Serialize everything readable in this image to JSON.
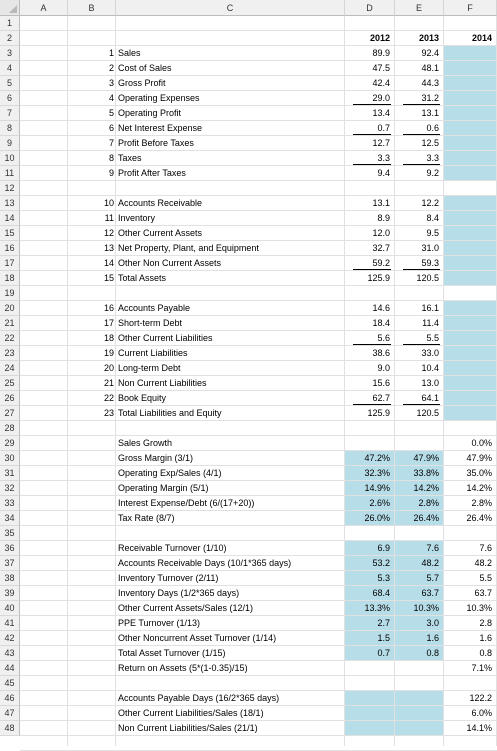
{
  "columns": [
    "A",
    "B",
    "C",
    "D",
    "E",
    "F"
  ],
  "header_row": {
    "d": "2012",
    "e": "2013",
    "f": "2014"
  },
  "rows": [
    {
      "r": "3",
      "n": "1",
      "label": "Sales",
      "d": "89.9",
      "e": "92.4"
    },
    {
      "r": "4",
      "n": "2",
      "label": "Cost of Sales",
      "d": "47.5",
      "e": "48.1"
    },
    {
      "r": "5",
      "n": "3",
      "label": "Gross Profit",
      "d": "42.4",
      "e": "44.3"
    },
    {
      "r": "6",
      "n": "4",
      "label": "Operating Expenses",
      "d": "29.0",
      "e": "31.2"
    },
    {
      "r": "7",
      "n": "5",
      "label": "Operating Profit",
      "d": "13.4",
      "e": "13.1"
    },
    {
      "r": "8",
      "n": "6",
      "label": "Net Interest Expense",
      "d": "0.7",
      "e": "0.6"
    },
    {
      "r": "9",
      "n": "7",
      "label": "Profit Before Taxes",
      "d": "12.7",
      "e": "12.5"
    },
    {
      "r": "10",
      "n": "8",
      "label": "Taxes",
      "d": "3.3",
      "e": "3.3"
    },
    {
      "r": "11",
      "n": "9",
      "label": "Profit After Taxes",
      "d": "9.4",
      "e": "9.2"
    },
    {
      "r": "13",
      "n": "10",
      "label": "Accounts Receivable",
      "d": "13.1",
      "e": "12.2"
    },
    {
      "r": "14",
      "n": "11",
      "label": "Inventory",
      "d": "8.9",
      "e": "8.4"
    },
    {
      "r": "15",
      "n": "12",
      "label": "Other Current Assets",
      "d": "12.0",
      "e": "9.5"
    },
    {
      "r": "16",
      "n": "13",
      "label": "Net Property, Plant, and Equipment",
      "d": "32.7",
      "e": "31.0"
    },
    {
      "r": "17",
      "n": "14",
      "label": "Other Non Current Assets",
      "d": "59.2",
      "e": "59.3"
    },
    {
      "r": "18",
      "n": "15",
      "label": "Total Assets",
      "d": "125.9",
      "e": "120.5"
    },
    {
      "r": "20",
      "n": "16",
      "label": "Accounts Payable",
      "d": "14.6",
      "e": "16.1"
    },
    {
      "r": "21",
      "n": "17",
      "label": "Short-term Debt",
      "d": "18.4",
      "e": "11.4"
    },
    {
      "r": "22",
      "n": "18",
      "label": "Other Current Liabilities",
      "d": "5.6",
      "e": "5.5"
    },
    {
      "r": "23",
      "n": "19",
      "label": "Current Liabilities",
      "d": "38.6",
      "e": "33.0"
    },
    {
      "r": "24",
      "n": "20",
      "label": "Long-term Debt",
      "d": "9.0",
      "e": "10.4"
    },
    {
      "r": "25",
      "n": "21",
      "label": "Non Current Liabilities",
      "d": "15.6",
      "e": "13.0"
    },
    {
      "r": "26",
      "n": "22",
      "label": "Book Equity",
      "d": "62.7",
      "e": "64.1"
    },
    {
      "r": "27",
      "n": "23",
      "label": "Total Liabilities and Equity",
      "d": "125.9",
      "e": "120.5"
    },
    {
      "r": "29",
      "label": "Sales Growth",
      "f": "0.0%"
    },
    {
      "r": "30",
      "label": "Gross Margin (3/1)",
      "d": "47.2%",
      "e": "47.9%",
      "f": "47.9%"
    },
    {
      "r": "31",
      "label": "Operating Exp/Sales (4/1)",
      "d": "32.3%",
      "e": "33.8%",
      "f": "35.0%"
    },
    {
      "r": "32",
      "label": "Operating Margin (5/1)",
      "d": "14.9%",
      "e": "14.2%",
      "f": "14.2%"
    },
    {
      "r": "33",
      "label": "Interest Expense/Debt (6/(17+20))",
      "d": "2.6%",
      "e": "2.8%",
      "f": "2.8%"
    },
    {
      "r": "34",
      "label": "Tax Rate (8/7)",
      "d": "26.0%",
      "e": "26.4%",
      "f": "26.4%"
    },
    {
      "r": "36",
      "label": "Receivable Turnover (1/10)",
      "d": "6.9",
      "e": "7.6",
      "f": "7.6"
    },
    {
      "r": "37",
      "label": "Accounts Receivable Days (10/1*365 days)",
      "d": "53.2",
      "e": "48.2",
      "f": "48.2"
    },
    {
      "r": "38",
      "label": "Inventory Turnover (2/11)",
      "d": "5.3",
      "e": "5.7",
      "f": "5.5"
    },
    {
      "r": "39",
      "label": "Inventory Days (1/2*365 days)",
      "d": "68.4",
      "e": "63.7",
      "f": "63.7"
    },
    {
      "r": "40",
      "label": "Other Current Assets/Sales (12/1)",
      "d": "13.3%",
      "e": "10.3%",
      "f": "10.3%"
    },
    {
      "r": "41",
      "label": "PPE Turnover (1/13)",
      "d": "2.7",
      "e": "3.0",
      "f": "2.8"
    },
    {
      "r": "42",
      "label": "Other Noncurrent Asset Turnover (1/14)",
      "d": "1.5",
      "e": "1.6",
      "f": "1.6"
    },
    {
      "r": "43",
      "label": "Total Asset Turnover (1/15)",
      "d": "0.7",
      "e": "0.8",
      "f": "0.8"
    },
    {
      "r": "44",
      "label": "Return on Assets (5*(1-0.35)/15)",
      "f": "7.1%"
    },
    {
      "r": "46",
      "label": "Accounts Payable Days (16/2*365 days)",
      "f": "122.2"
    },
    {
      "r": "47",
      "label": "Other Current Liabilities/Sales (18/1)",
      "f": "6.0%"
    },
    {
      "r": "48",
      "label": "Non Current Liabilities/Sales (21/1)",
      "f": "14.1%"
    }
  ],
  "fill_color": "#b7dde8"
}
